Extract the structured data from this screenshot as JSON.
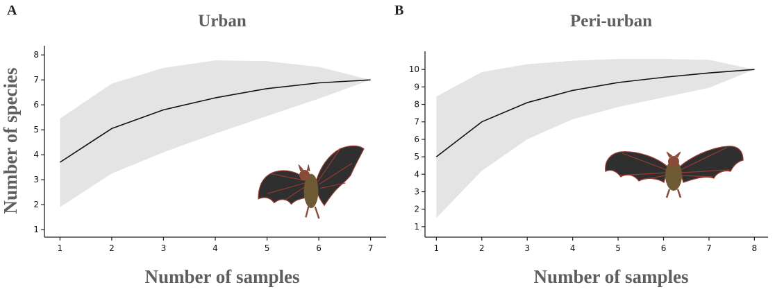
{
  "colors": {
    "band": "#e4e4e4",
    "line": "#111111",
    "bat_wing": "#2f2f2f",
    "bat_bone": "#9b3a30",
    "bat_body": "#6e5a34"
  },
  "figure_image": "bat-illustration",
  "chart_data": [
    {
      "panel": "A",
      "type": "line",
      "title": "Urban",
      "xlabel": "Number of samples",
      "ylabel": "Number of species",
      "x": [
        1,
        2,
        3,
        4,
        5,
        6,
        7
      ],
      "series": [
        {
          "values": [
            3.7,
            5.05,
            5.8,
            6.28,
            6.65,
            6.88,
            7.0
          ]
        }
      ],
      "band": {
        "upper": [
          5.45,
          6.85,
          7.48,
          7.78,
          7.75,
          7.52,
          7.0
        ],
        "lower": [
          1.9,
          3.25,
          4.1,
          4.85,
          5.55,
          6.25,
          7.0
        ]
      },
      "xlim": [
        0.7,
        7.3
      ],
      "ylim": [
        0.7,
        8.2
      ],
      "xticks": [
        1,
        2,
        3,
        4,
        5,
        6,
        7
      ],
      "yticks": [
        1,
        2,
        3,
        4,
        5,
        6,
        7,
        8
      ],
      "grid": false,
      "legend": "none"
    },
    {
      "panel": "B",
      "type": "line",
      "title": "Peri-urban",
      "xlabel": "Number of samples",
      "ylabel": "",
      "x": [
        1,
        2,
        3,
        4,
        5,
        6,
        7,
        8
      ],
      "series": [
        {
          "values": [
            5.0,
            7.0,
            8.1,
            8.8,
            9.25,
            9.55,
            9.8,
            10.0
          ]
        }
      ],
      "band": {
        "upper": [
          8.45,
          9.85,
          10.3,
          10.5,
          10.6,
          10.6,
          10.55,
          10.0
        ],
        "lower": [
          1.5,
          4.2,
          6.0,
          7.15,
          7.85,
          8.4,
          8.95,
          10.0
        ]
      },
      "xlim": [
        0.75,
        8.3
      ],
      "ylim": [
        0.4,
        10.8
      ],
      "xticks": [
        1,
        2,
        3,
        4,
        5,
        6,
        7,
        8
      ],
      "yticks": [
        1,
        2,
        3,
        4,
        5,
        6,
        7,
        8,
        9,
        10
      ],
      "grid": false,
      "legend": "none"
    }
  ]
}
